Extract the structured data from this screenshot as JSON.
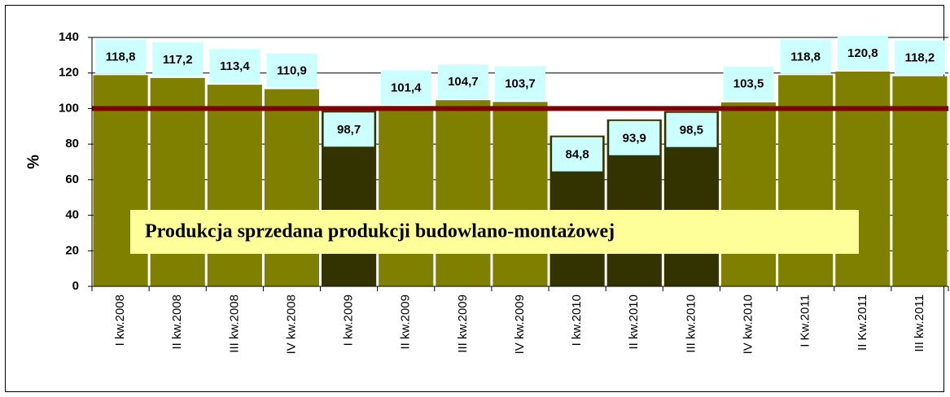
{
  "chart_data": {
    "type": "bar",
    "y_label": "%",
    "annotation": "Produkcja sprzedana produkcji budowlano-montażowej",
    "categories": [
      "I kw.2008",
      "II kw.2008",
      "III kw.2008",
      "IV kw.2008",
      "I kw.2009",
      "II kw.2009",
      "III kw.2009",
      "IV kw.2009",
      "I kw.2010",
      "II kw.2010",
      "III kw.2010",
      "IV kw.2010",
      "I Kw.2011",
      "II Kw.2011",
      "III kw.2011"
    ],
    "values": [
      118.8,
      117.2,
      113.4,
      110.9,
      98.7,
      101.4,
      104.7,
      103.7,
      84.8,
      93.9,
      98.5,
      103.5,
      118.8,
      120.8,
      118.2
    ],
    "value_labels": [
      "118,8",
      "117,2",
      "113,4",
      "110,9",
      "98,7",
      "101,4",
      "104,7",
      "103,7",
      "84,8",
      "93,9",
      "98,5",
      "103,5",
      "118,8",
      "120,8",
      "118,2"
    ],
    "colors": [
      "#808000",
      "#808000",
      "#808000",
      "#808000",
      "#333300",
      "#808000",
      "#808000",
      "#808000",
      "#333300",
      "#333300",
      "#333300",
      "#808000",
      "#808000",
      "#808000",
      "#808000"
    ],
    "reference_line": {
      "value": 100,
      "color": "#800000"
    },
    "ylim": [
      0,
      140
    ],
    "yticks": [
      0,
      20,
      40,
      60,
      80,
      100,
      120,
      140
    ],
    "grid": true
  }
}
